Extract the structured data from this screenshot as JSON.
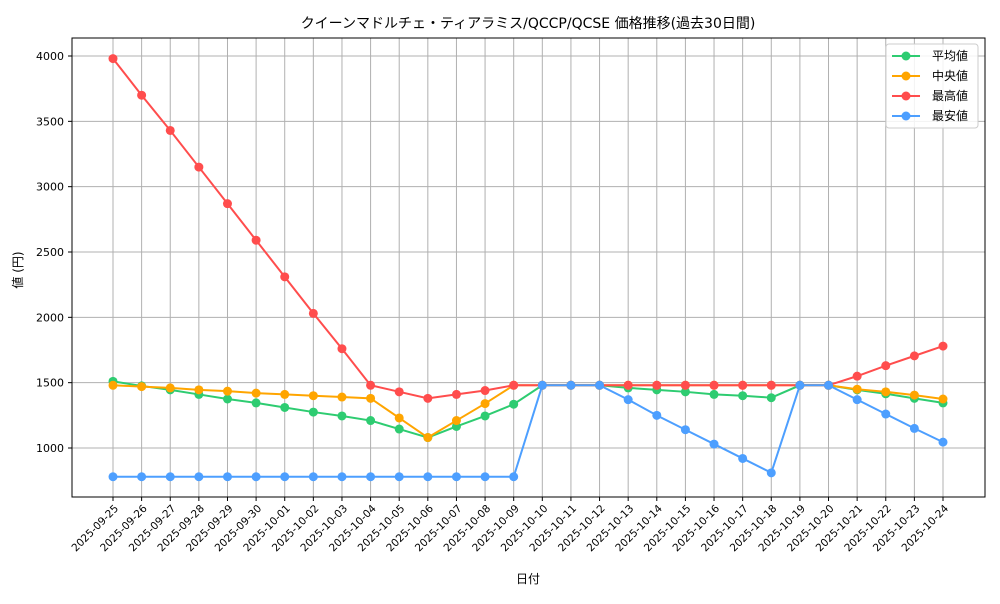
{
  "chart_data": {
    "type": "line",
    "title": "クイーンマドルチェ・ティアラミス/QCCP/QCSE 価格推移(過去30日間)",
    "xlabel": "日付",
    "ylabel": "値 (円)",
    "ylim": [
      620,
      4140
    ],
    "yticks": [
      1000,
      1500,
      2000,
      2500,
      3000,
      3500,
      4000
    ],
    "grid": true,
    "legend_position": "upper right",
    "categories": [
      "2025-09-25",
      "2025-09-26",
      "2025-09-27",
      "2025-09-28",
      "2025-09-29",
      "2025-09-30",
      "2025-10-01",
      "2025-10-02",
      "2025-10-03",
      "2025-10-04",
      "2025-10-05",
      "2025-10-06",
      "2025-10-07",
      "2025-10-08",
      "2025-10-09",
      "2025-10-10",
      "2025-10-11",
      "2025-10-12",
      "2025-10-13",
      "2025-10-14",
      "2025-10-15",
      "2025-10-16",
      "2025-10-17",
      "2025-10-18",
      "2025-10-19",
      "2025-10-20",
      "2025-10-21",
      "2025-10-22",
      "2025-10-23",
      "2025-10-24"
    ],
    "series": [
      {
        "name": "平均値",
        "color": "#2ecc71",
        "values": [
          1510,
          1475,
          1445,
          1410,
          1375,
          1345,
          1310,
          1275,
          1245,
          1210,
          1145,
          1080,
          1165,
          1245,
          1335,
          1480,
          1480,
          1480,
          1460,
          1445,
          1430,
          1410,
          1400,
          1385,
          1480,
          1480,
          1445,
          1415,
          1380,
          1345
        ]
      },
      {
        "name": "中央値",
        "color": "#ffa500",
        "values": [
          1480,
          1470,
          1460,
          1445,
          1435,
          1420,
          1410,
          1400,
          1390,
          1380,
          1230,
          1080,
          1210,
          1340,
          1480,
          1480,
          1480,
          1480,
          1480,
          1480,
          1480,
          1480,
          1480,
          1480,
          1480,
          1480,
          1450,
          1430,
          1405,
          1375
        ]
      },
      {
        "name": "最高値",
        "color": "#ff4d4d",
        "values": [
          3980,
          3700,
          3430,
          3150,
          2870,
          2590,
          2310,
          2030,
          1760,
          1480,
          1430,
          1380,
          1410,
          1440,
          1480,
          1480,
          1480,
          1480,
          1480,
          1480,
          1480,
          1480,
          1480,
          1480,
          1480,
          1480,
          1550,
          1630,
          1705,
          1780
        ]
      },
      {
        "name": "最安値",
        "color": "#4d9fff",
        "values": [
          780,
          780,
          780,
          780,
          780,
          780,
          780,
          780,
          780,
          780,
          780,
          780,
          780,
          780,
          780,
          1480,
          1480,
          1480,
          1370,
          1250,
          1140,
          1030,
          920,
          810,
          1480,
          1480,
          1370,
          1260,
          1150,
          1045
        ]
      }
    ]
  }
}
